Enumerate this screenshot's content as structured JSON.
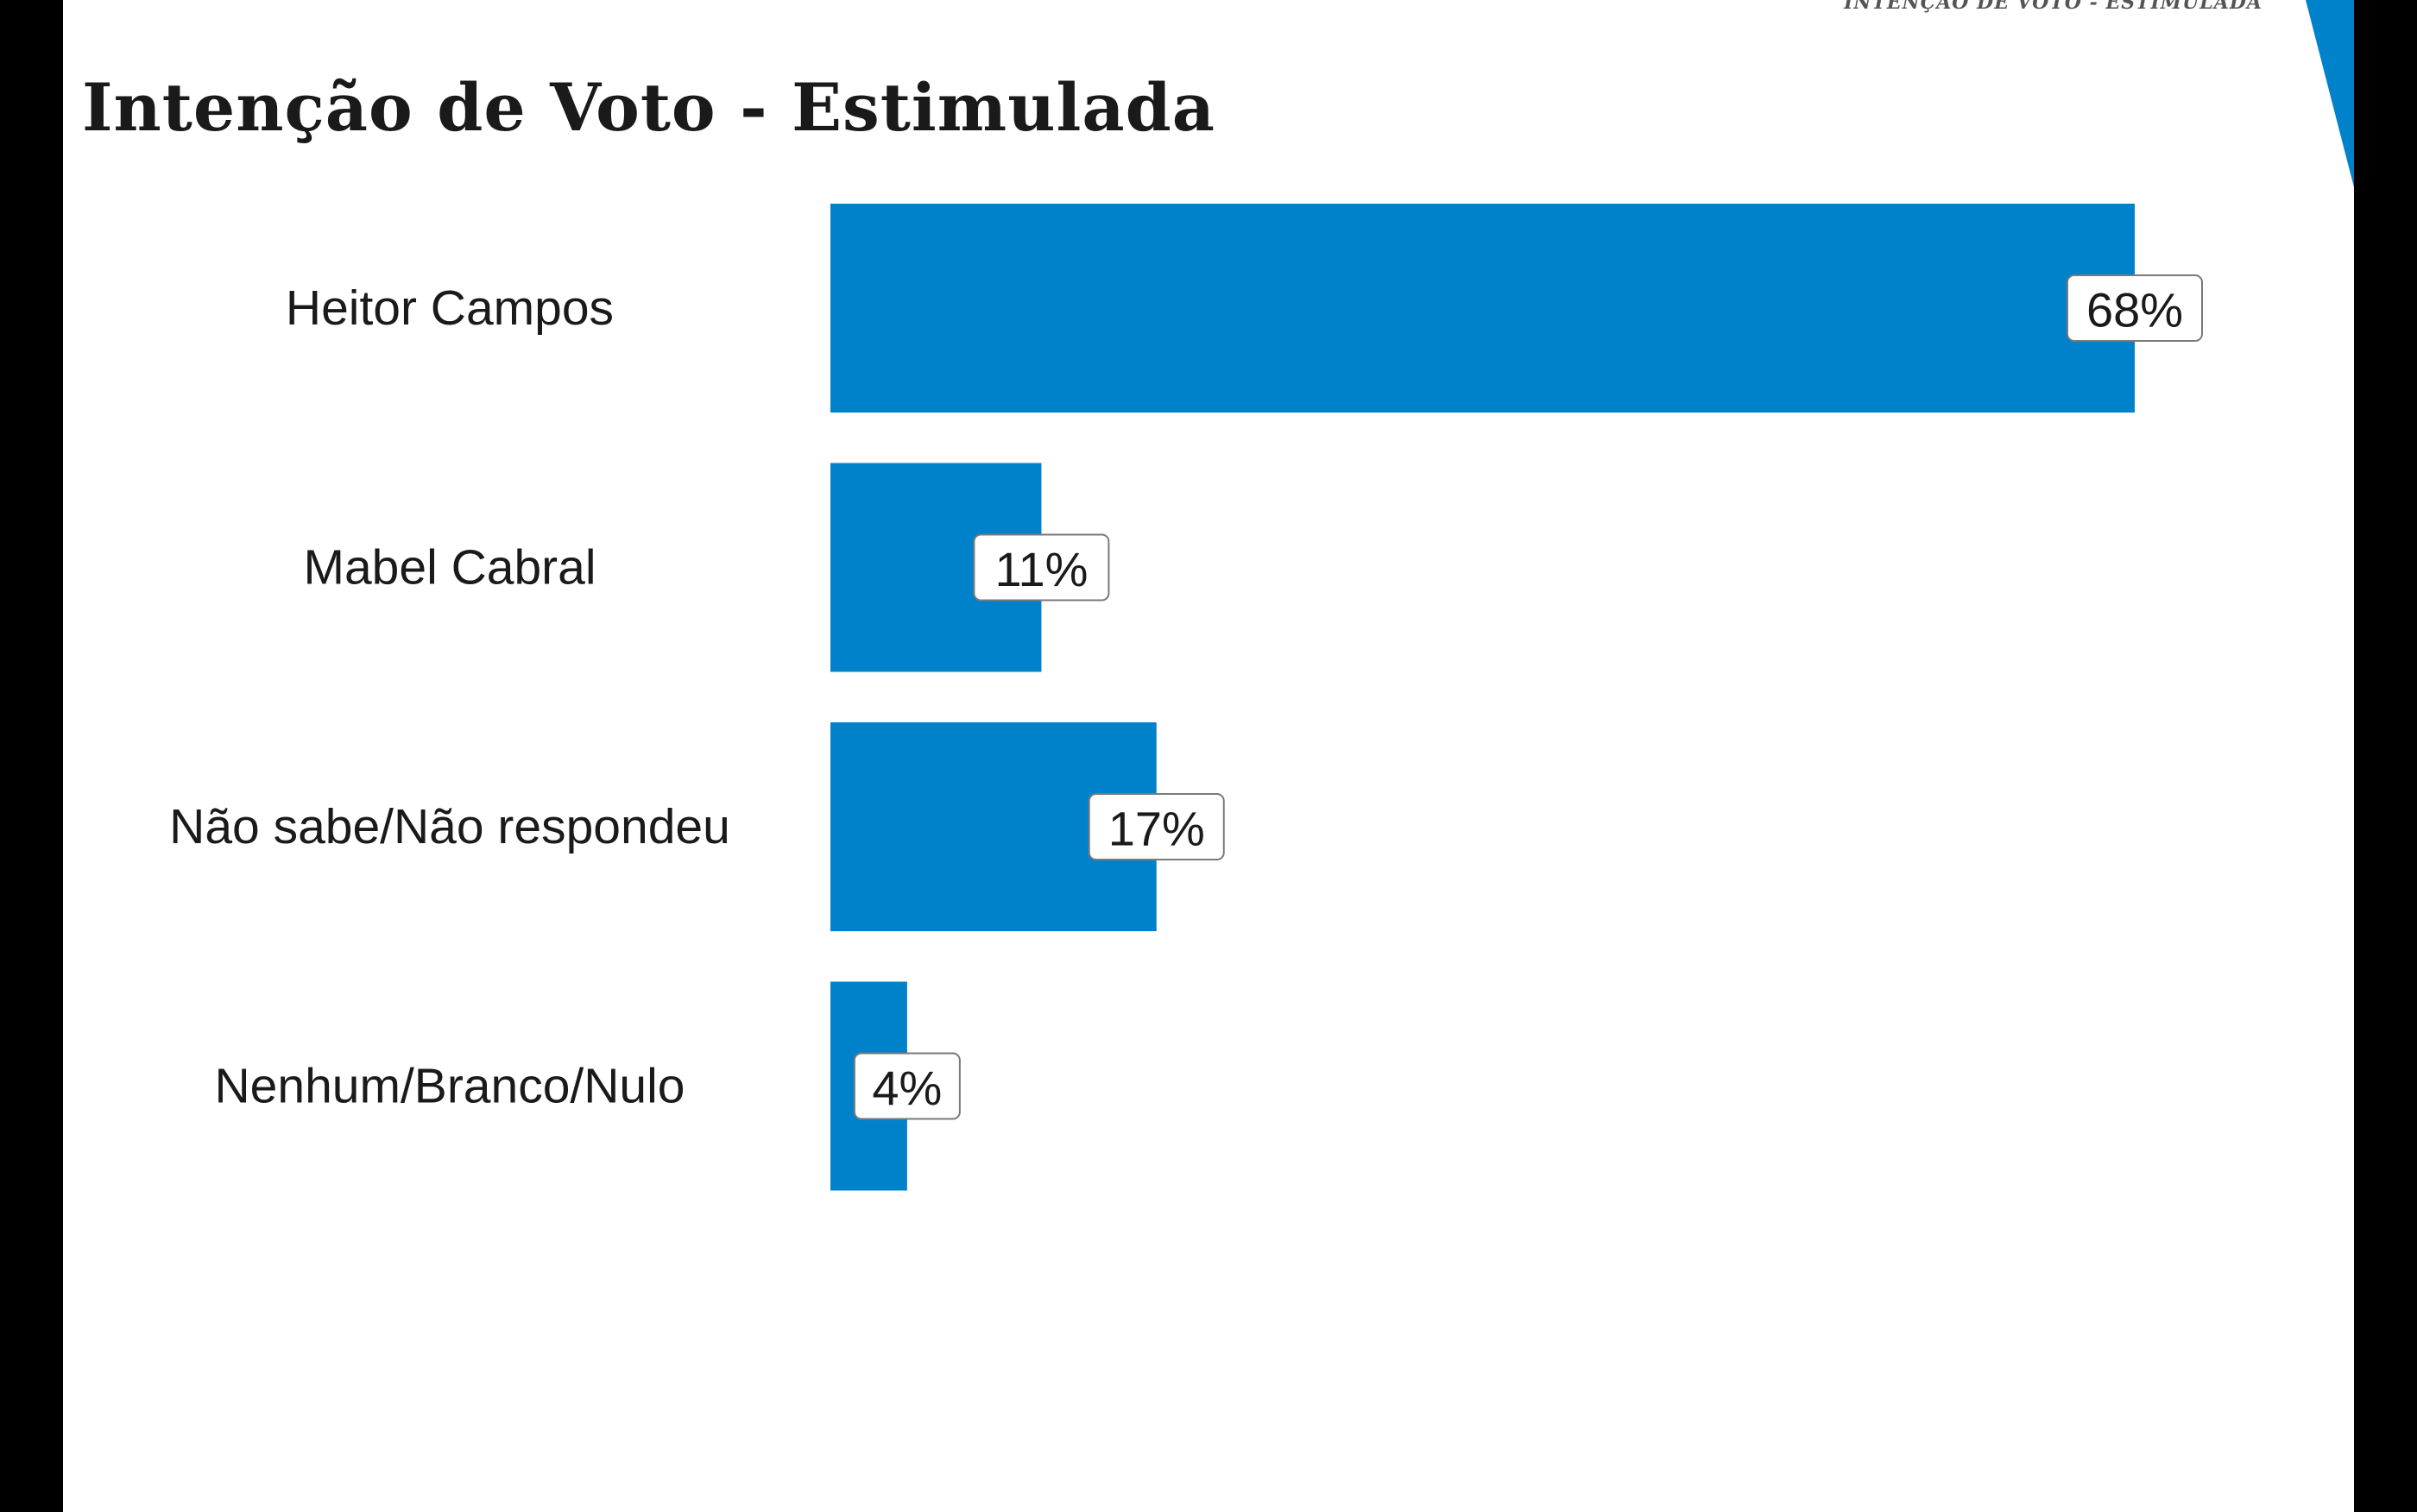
{
  "header": {
    "running_title": "INTENÇÃO DE VOTO - ESTIMULADA"
  },
  "slide": {
    "title": "Intenção de Voto - Estimulada"
  },
  "colors": {
    "bar": "#0082ca",
    "accent": "#0082ca",
    "label_box_fill": "#ffffff",
    "label_box_stroke": "#7a7a7a",
    "background": "#ffffff",
    "frame": "#000000"
  },
  "chart_data": {
    "type": "bar",
    "orientation": "horizontal",
    "title": "Intenção de Voto - Estimulada",
    "xlabel": "",
    "ylabel": "",
    "categories": [
      "Heitor Campos",
      "Mabel Cabral",
      "Não sabe/Não respondeu",
      "Nenhum/Branco/Nulo"
    ],
    "values": [
      68,
      11,
      17,
      4
    ],
    "value_labels": [
      "68%",
      "11%",
      "17%",
      "4%"
    ],
    "xlim": [
      0,
      68
    ],
    "grid": false,
    "legend": "none"
  }
}
